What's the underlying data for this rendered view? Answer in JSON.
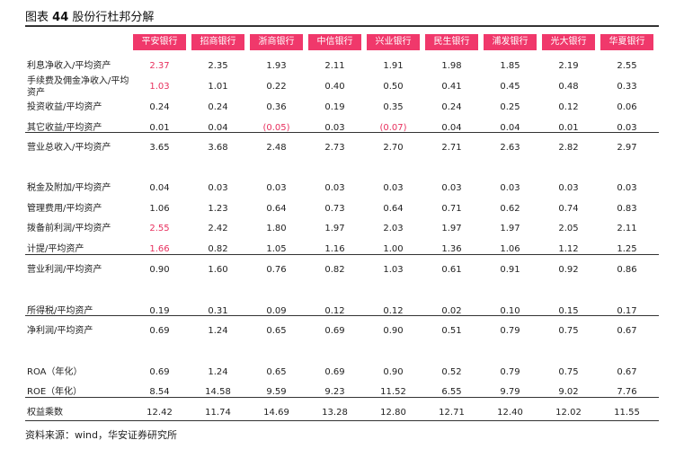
{
  "title": {
    "label": "图表",
    "number": "44",
    "text": "股份行杜邦分解"
  },
  "table": {
    "columns": [
      "平安银行",
      "招商银行",
      "浙商银行",
      "中信银行",
      "兴业银行",
      "民生银行",
      "浦发银行",
      "光大银行",
      "华夏银行"
    ],
    "highlight_color": "#e8305e",
    "header_color": "#f0386b",
    "rows": [
      {
        "label": "利息净收入/平均资产",
        "values": [
          "2.37",
          "2.35",
          "1.93",
          "2.11",
          "1.91",
          "1.98",
          "1.85",
          "2.19",
          "2.55"
        ],
        "highlighted": [
          0
        ]
      },
      {
        "label": "手续费及佣金净收入/平均资产",
        "values": [
          "1.03",
          "1.01",
          "0.22",
          "0.40",
          "0.50",
          "0.41",
          "0.45",
          "0.48",
          "0.33"
        ],
        "highlighted": [
          0
        ]
      },
      {
        "label": "投资收益/平均资产",
        "values": [
          "0.24",
          "0.24",
          "0.36",
          "0.19",
          "0.35",
          "0.24",
          "0.25",
          "0.12",
          "0.06"
        ],
        "highlighted": []
      },
      {
        "label": "其它收益/平均资产",
        "values": [
          "0.01",
          "0.04",
          "(0.05)",
          "0.03",
          "(0.07)",
          "0.04",
          "0.04",
          "0.01",
          "0.03"
        ],
        "highlighted": [
          2,
          4
        ]
      },
      {
        "label": "营业总收入/平均资产",
        "values": [
          "3.65",
          "3.68",
          "2.48",
          "2.73",
          "2.70",
          "2.71",
          "2.63",
          "2.82",
          "2.97"
        ],
        "highlighted": []
      },
      {
        "label": "税金及附加/平均资产",
        "values": [
          "0.04",
          "0.03",
          "0.03",
          "0.03",
          "0.03",
          "0.03",
          "0.03",
          "0.03",
          "0.03"
        ],
        "highlighted": []
      },
      {
        "label": "管理费用/平均资产",
        "values": [
          "1.06",
          "1.23",
          "0.64",
          "0.73",
          "0.64",
          "0.71",
          "0.62",
          "0.74",
          "0.83"
        ],
        "highlighted": []
      },
      {
        "label": "拨备前利润/平均资产",
        "values": [
          "2.55",
          "2.42",
          "1.80",
          "1.97",
          "2.03",
          "1.97",
          "1.97",
          "2.05",
          "2.11"
        ],
        "highlighted": [
          0
        ]
      },
      {
        "label": "计提/平均资产",
        "values": [
          "1.66",
          "0.82",
          "1.05",
          "1.16",
          "1.00",
          "1.36",
          "1.06",
          "1.12",
          "1.25"
        ],
        "highlighted": [
          0
        ]
      },
      {
        "label": "营业利润/平均资产",
        "values": [
          "0.90",
          "1.60",
          "0.76",
          "0.82",
          "1.03",
          "0.61",
          "0.91",
          "0.92",
          "0.86"
        ],
        "highlighted": []
      },
      {
        "label": "所得税/平均资产",
        "values": [
          "0.19",
          "0.31",
          "0.09",
          "0.12",
          "0.12",
          "0.02",
          "0.10",
          "0.15",
          "0.17"
        ],
        "highlighted": []
      },
      {
        "label": "净利润/平均资产",
        "values": [
          "0.69",
          "1.24",
          "0.65",
          "0.69",
          "0.90",
          "0.51",
          "0.79",
          "0.75",
          "0.67"
        ],
        "highlighted": []
      },
      {
        "label": "ROA（年化）",
        "values": [
          "0.69",
          "1.24",
          "0.65",
          "0.69",
          "0.90",
          "0.52",
          "0.79",
          "0.75",
          "0.67"
        ],
        "highlighted": []
      },
      {
        "label": "ROE（年化）",
        "values": [
          "8.54",
          "14.58",
          "9.59",
          "9.23",
          "11.52",
          "6.55",
          "9.79",
          "9.02",
          "7.76"
        ],
        "highlighted": []
      },
      {
        "label": "权益乘数",
        "values": [
          "12.42",
          "11.74",
          "14.69",
          "13.28",
          "12.80",
          "12.71",
          "12.40",
          "12.02",
          "11.55"
        ],
        "highlighted": []
      }
    ]
  },
  "source": "资料来源：wind，华安证券研究所"
}
